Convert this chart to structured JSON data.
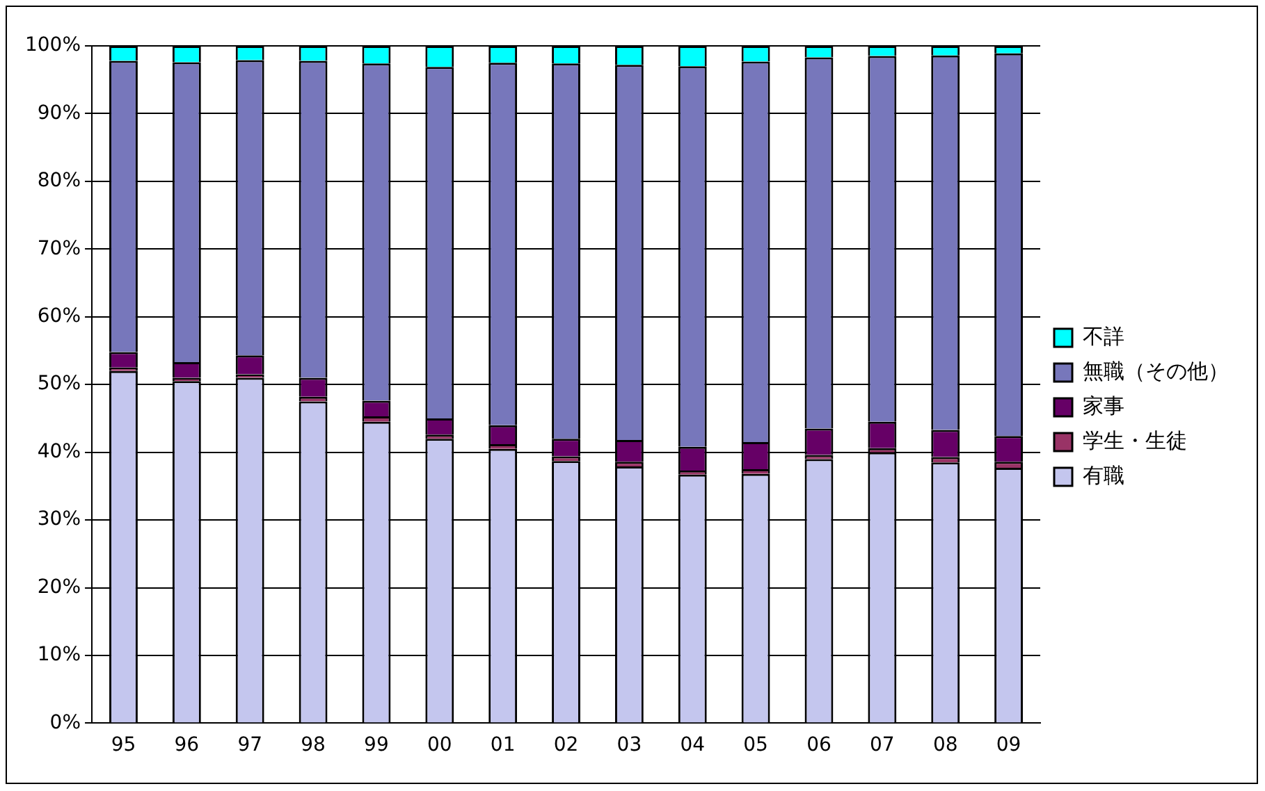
{
  "chart_data": {
    "type": "bar",
    "stacked": true,
    "categories": [
      "95",
      "96",
      "97",
      "98",
      "99",
      "00",
      "01",
      "02",
      "03",
      "04",
      "05",
      "06",
      "07",
      "08",
      "09"
    ],
    "series": [
      {
        "name": "有職",
        "color": "#c4c6ee",
        "values": [
          52.0,
          50.5,
          51.0,
          47.5,
          44.5,
          42.0,
          40.5,
          38.7,
          37.9,
          36.7,
          36.8,
          39.0,
          40.0,
          38.5,
          37.7
        ]
      },
      {
        "name": "学生・生徒",
        "color": "#993366",
        "values": [
          0.5,
          0.5,
          0.5,
          0.7,
          0.8,
          0.6,
          0.7,
          0.7,
          0.7,
          0.6,
          0.7,
          0.6,
          0.6,
          0.8,
          0.9
        ]
      },
      {
        "name": "家事",
        "color": "#660066",
        "values": [
          2.3,
          2.3,
          2.8,
          2.8,
          2.3,
          2.4,
          2.8,
          2.6,
          3.2,
          3.5,
          4.0,
          3.9,
          3.9,
          4.0,
          3.8
        ]
      },
      {
        "name": "無職（その他）",
        "color": "#7777bb",
        "values": [
          43.0,
          44.3,
          43.6,
          46.8,
          49.8,
          51.9,
          53.5,
          55.4,
          55.4,
          56.2,
          56.2,
          54.8,
          54.0,
          55.3,
          56.5
        ]
      },
      {
        "name": "不詳",
        "color": "#00ffff",
        "values": [
          2.2,
          2.4,
          2.1,
          2.2,
          2.6,
          3.1,
          2.5,
          2.6,
          2.8,
          3.0,
          2.3,
          1.7,
          1.5,
          1.4,
          1.1
        ]
      }
    ],
    "ylim": [
      0,
      100
    ],
    "yticks": [
      {
        "value": 0,
        "label": "0%"
      },
      {
        "value": 10,
        "label": "10%"
      },
      {
        "value": 20,
        "label": "20%"
      },
      {
        "value": 30,
        "label": "30%"
      },
      {
        "value": 40,
        "label": "40%"
      },
      {
        "value": 50,
        "label": "50%"
      },
      {
        "value": 60,
        "label": "60%"
      },
      {
        "value": 70,
        "label": "70%"
      },
      {
        "value": 80,
        "label": "80%"
      },
      {
        "value": 90,
        "label": "90%"
      },
      {
        "value": 100,
        "label": "100%"
      }
    ],
    "grid": "y",
    "legend": "right"
  }
}
